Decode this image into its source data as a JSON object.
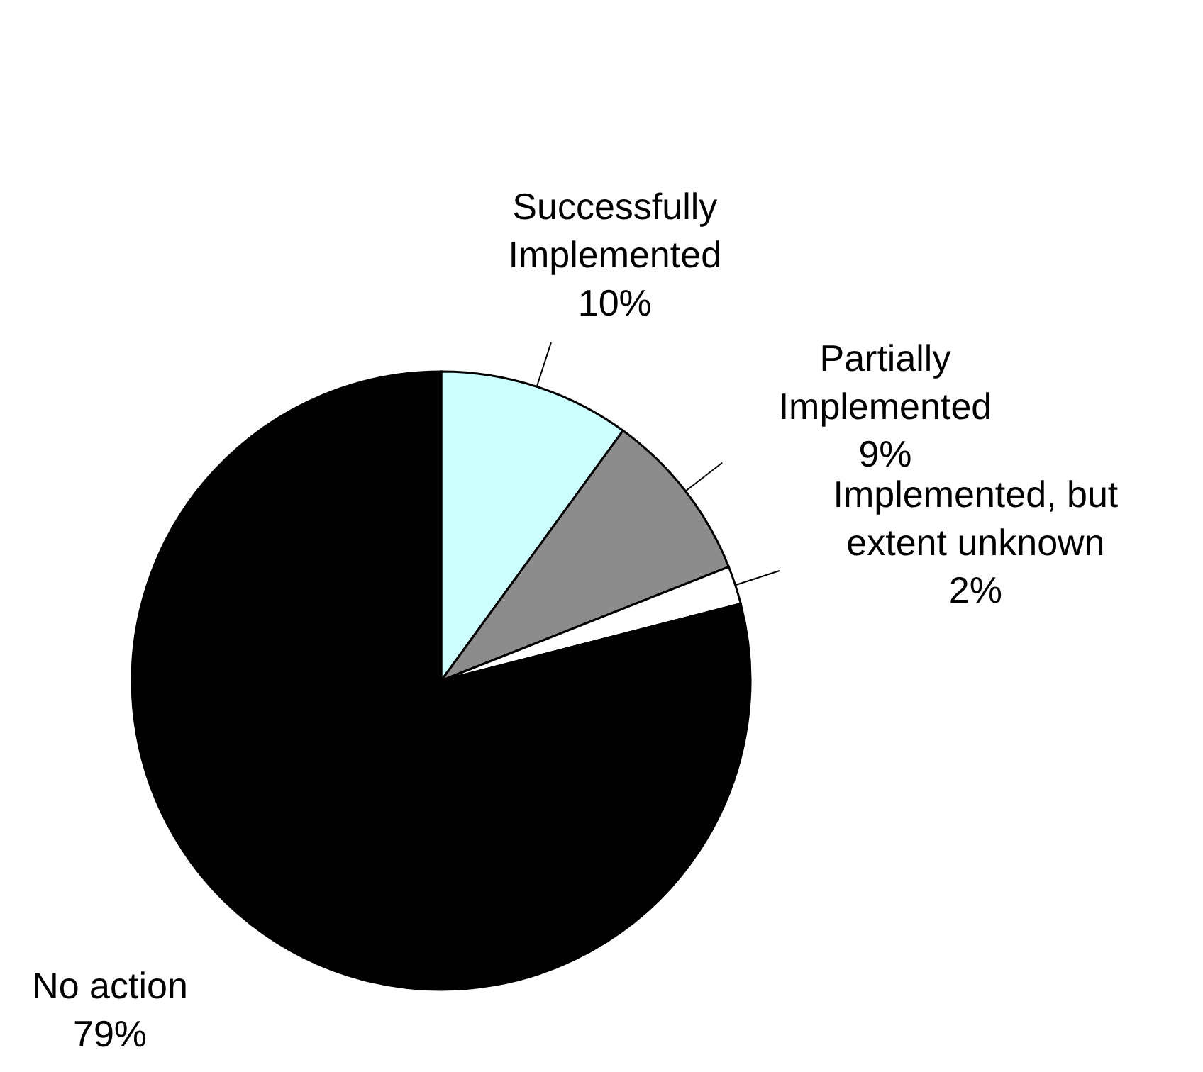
{
  "chart_data": {
    "type": "pie",
    "categories": [
      "Successfully Implemented",
      "Partially Implemented",
      "Implemented, but extent unknown",
      "No action"
    ],
    "values": [
      10,
      9,
      2,
      79
    ],
    "colors": [
      "#ccffff",
      "#8c8c8c",
      "#ffffff",
      "#000000"
    ],
    "value_labels": [
      "10%",
      "9%",
      "2%",
      "79%"
    ]
  }
}
